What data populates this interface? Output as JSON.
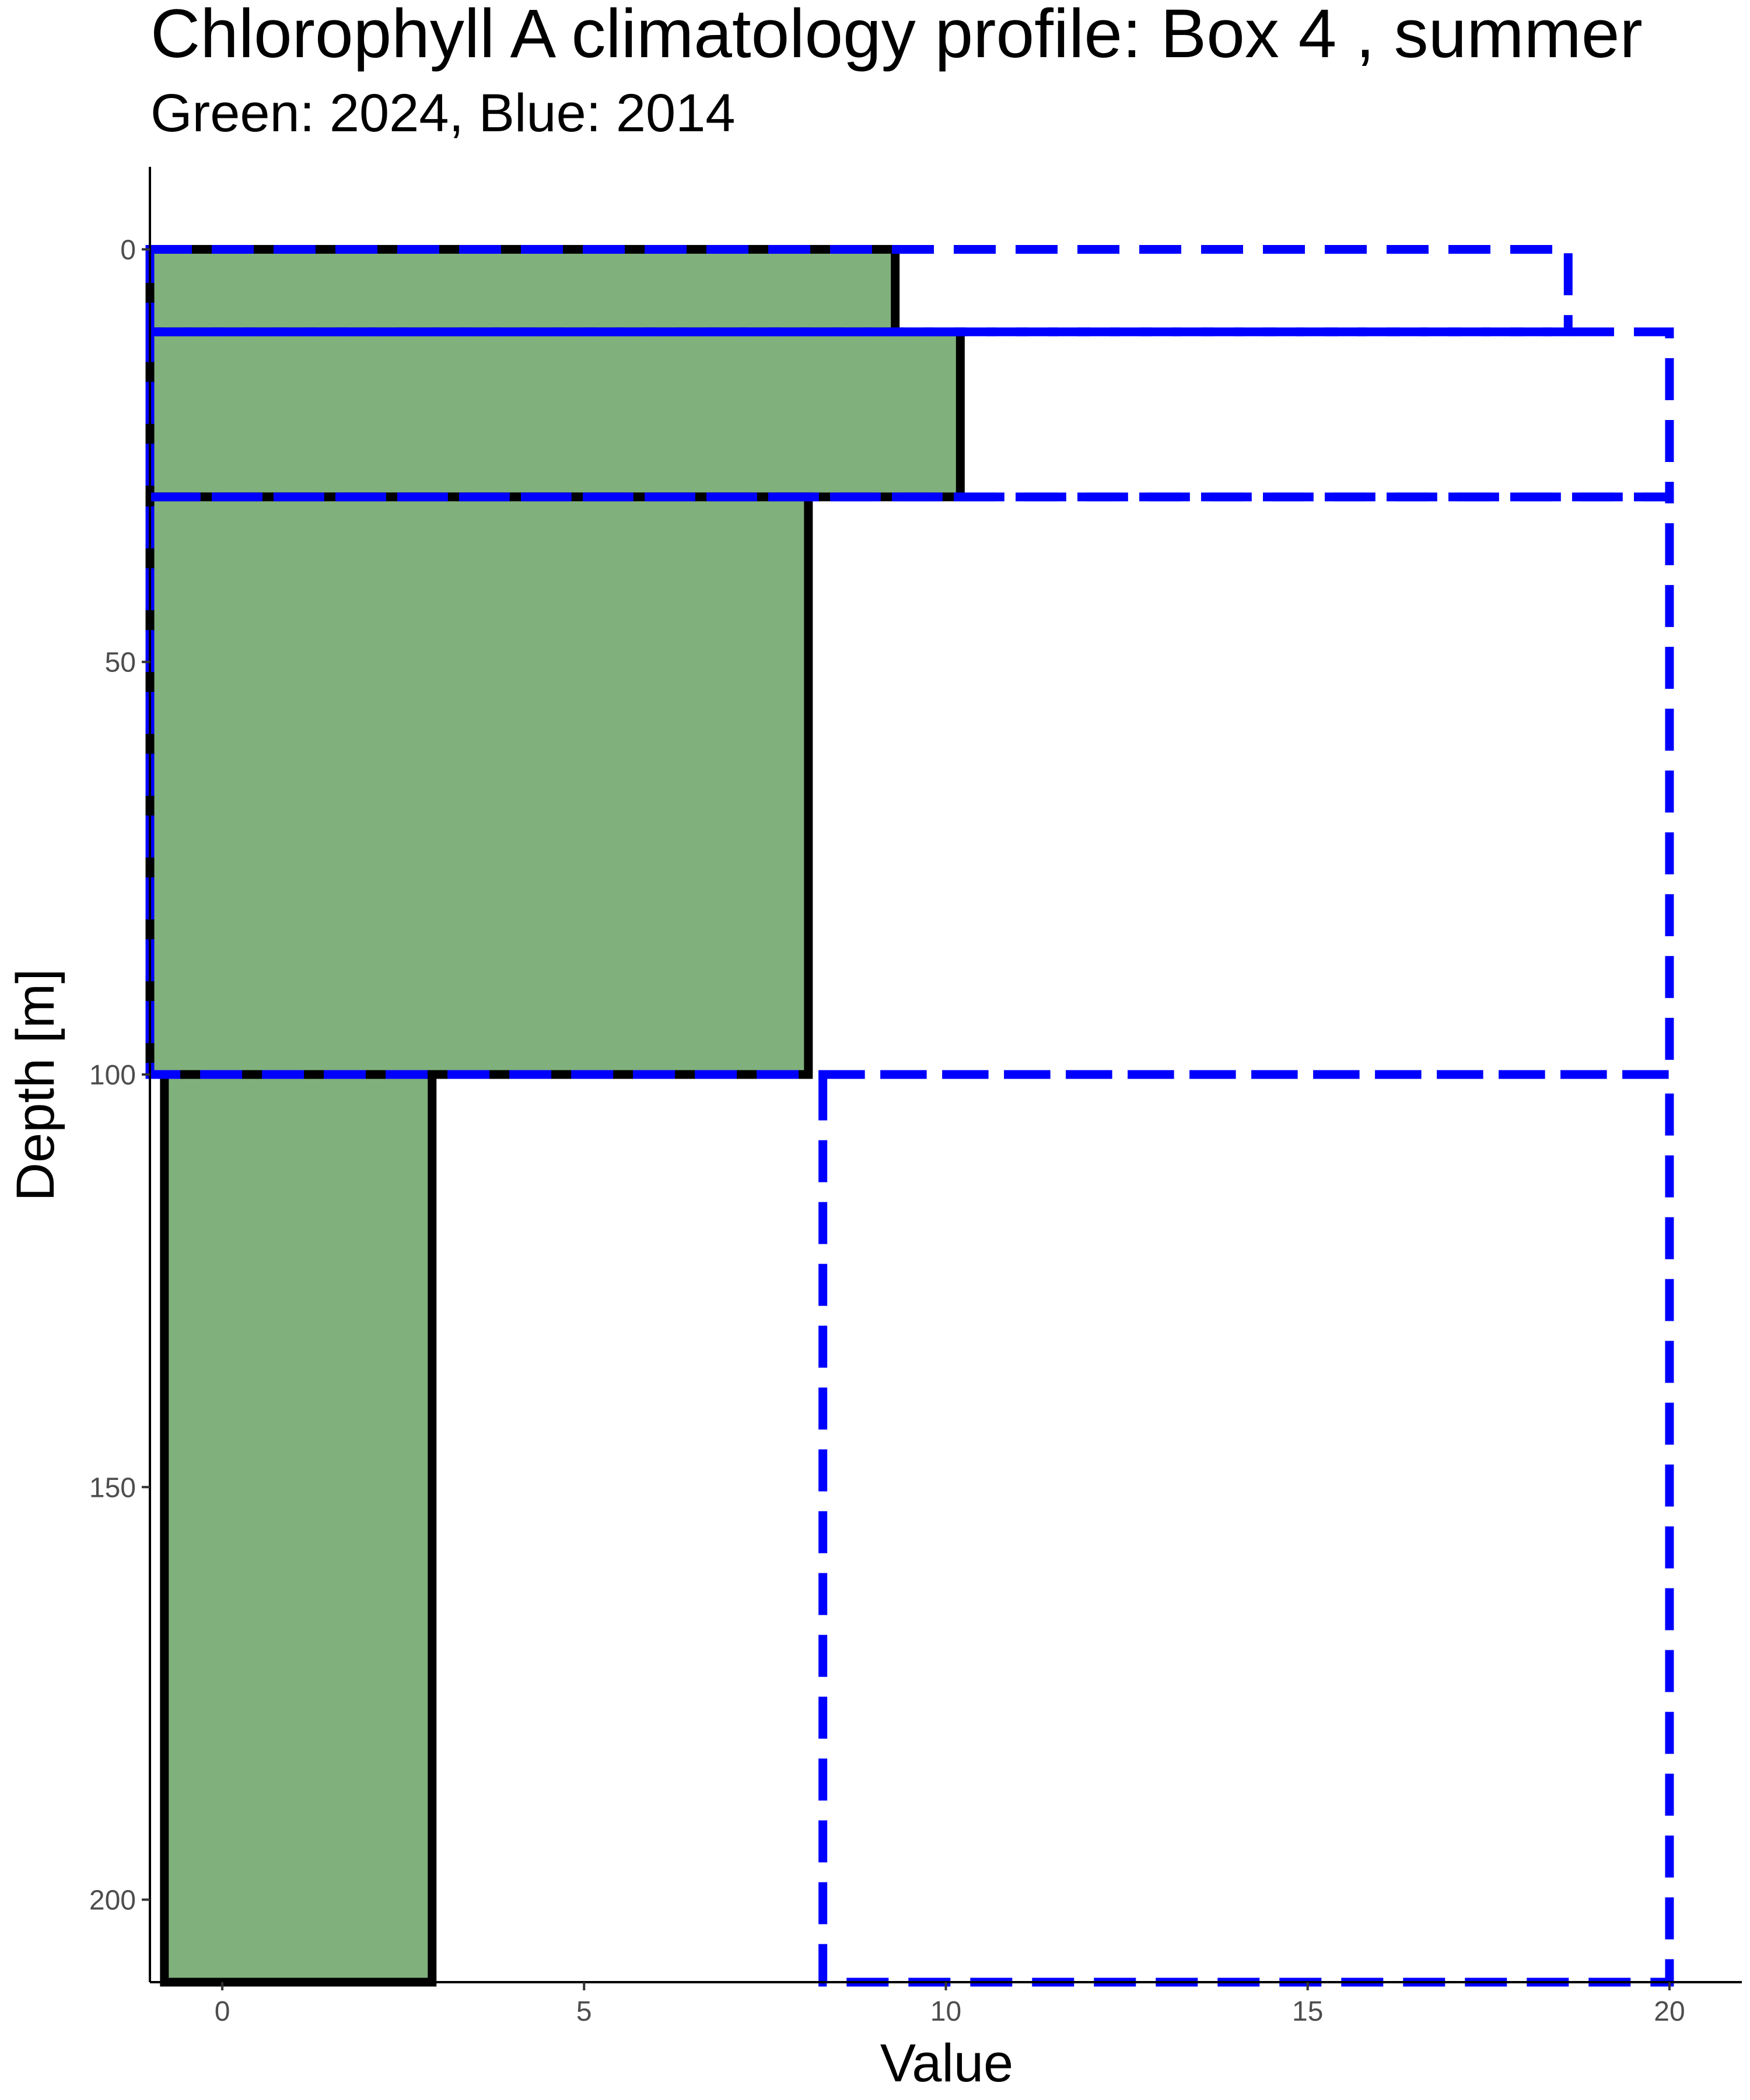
{
  "chart_data": {
    "type": "bar",
    "orientation": "horizontal-depth-profile",
    "title": "Chlorophyll A climatology profile: Box 4 , summer",
    "subtitle": "Green: 2024, Blue: 2014",
    "xlabel": "Value",
    "ylabel": "Depth [m]",
    "xlim": [
      -1,
      21
    ],
    "ylim": [
      -10,
      210
    ],
    "y_reversed": true,
    "x_ticks": [
      "0",
      "5",
      "10",
      "15",
      "20"
    ],
    "x_tick_values": [
      0,
      5,
      10,
      15,
      20
    ],
    "y_ticks": [
      "0",
      "50",
      "100",
      "150",
      "200"
    ],
    "y_tick_values": [
      0,
      50,
      100,
      150,
      200
    ],
    "grid": false,
    "legend": "none",
    "series": [
      {
        "style": "filled-solid",
        "fill_color": "#80b07c",
        "stroke_color": "#000000",
        "layers": [
          {
            "depth_top": 0,
            "depth_bottom": 10,
            "x_min": -1,
            "x_max": 9.3
          },
          {
            "depth_top": 10,
            "depth_bottom": 30,
            "x_min": -1,
            "x_max": 10.2
          },
          {
            "depth_top": 30,
            "depth_bottom": 100,
            "x_min": -1,
            "x_max": 8.1
          },
          {
            "depth_top": 100,
            "depth_bottom": 210,
            "x_min": -0.8,
            "x_max": 2.9
          }
        ]
      },
      {
        "style": "dashed-outline",
        "stroke_color": "#0000ff",
        "layers": [
          {
            "depth_top": 0,
            "depth_bottom": 10,
            "x_min": -1,
            "x_max": 18.6
          },
          {
            "depth_top": 10,
            "depth_bottom": 30,
            "x_min": -1,
            "x_max": 20.0
          },
          {
            "depth_top": 30,
            "depth_bottom": 100,
            "x_min": -1,
            "x_max": 20.0
          },
          {
            "depth_top": 100,
            "depth_bottom": 210,
            "x_min": 8.3,
            "x_max": 20.0
          }
        ]
      }
    ]
  }
}
